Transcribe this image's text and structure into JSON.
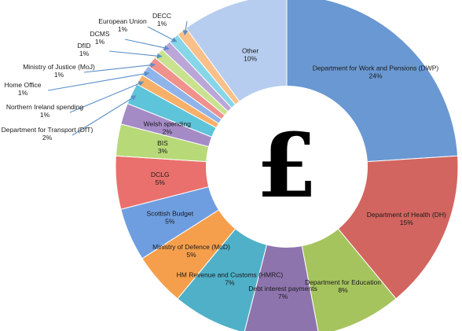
{
  "chart_data": {
    "type": "pie",
    "variant": "donut",
    "center_symbol": "£",
    "slices": [
      {
        "label": "Department for Work and Pensions (DWP)",
        "value": 24,
        "value_label": "24%",
        "color": "#6a98d2"
      },
      {
        "label": "Department of Health (DH)",
        "value": 15,
        "value_label": "15%",
        "color": "#d2655f"
      },
      {
        "label": "Department for Education",
        "value": 8,
        "value_label": "8%",
        "color": "#a6c45e"
      },
      {
        "label": "Debt interest payments",
        "value": 7,
        "value_label": "7%",
        "color": "#8e74ad"
      },
      {
        "label": "HM Revenue and Customs (HMRC)",
        "value": 7,
        "value_label": "7%",
        "color": "#4fb0c8"
      },
      {
        "label": "Ministry of Defence (MoD)",
        "value": 5,
        "value_label": "5%",
        "color": "#f59f4c"
      },
      {
        "label": "Scottish Budget",
        "value": 5,
        "value_label": "5%",
        "color": "#6f9ee0"
      },
      {
        "label": "DCLG",
        "value": 5,
        "value_label": "5%",
        "color": "#e9706c"
      },
      {
        "label": "BIS",
        "value": 3,
        "value_label": "3%",
        "color": "#b8d978"
      },
      {
        "label": "Welsh spending",
        "value": 2,
        "value_label": "2%",
        "color": "#a58bc6"
      },
      {
        "label": "Department for Transport (DfT)",
        "value": 2,
        "value_label": "2%",
        "color": "#5ec4d9"
      },
      {
        "label": "Northern Ireland spending",
        "value": 1,
        "value_label": "1%",
        "color": "#f7b06a"
      },
      {
        "label": "Home Office",
        "value": 1,
        "value_label": "1%",
        "color": "#8fb4ea"
      },
      {
        "label": "Ministry of Justice (MoJ)",
        "value": 1,
        "value_label": "1%",
        "color": "#f0918c"
      },
      {
        "label": "DfID",
        "value": 1,
        "value_label": "1%",
        "color": "#c9e28f"
      },
      {
        "label": "DCMS",
        "value": 1,
        "value_label": "1%",
        "color": "#bba6d8"
      },
      {
        "label": "European Union",
        "value": 1,
        "value_label": "1%",
        "color": "#86d6e8"
      },
      {
        "label": "DECC",
        "value": 1,
        "value_label": "1%",
        "color": "#f9c08a"
      },
      {
        "label": "Other",
        "value": 10,
        "value_label": "10%",
        "color": "#b6cdef"
      }
    ]
  }
}
